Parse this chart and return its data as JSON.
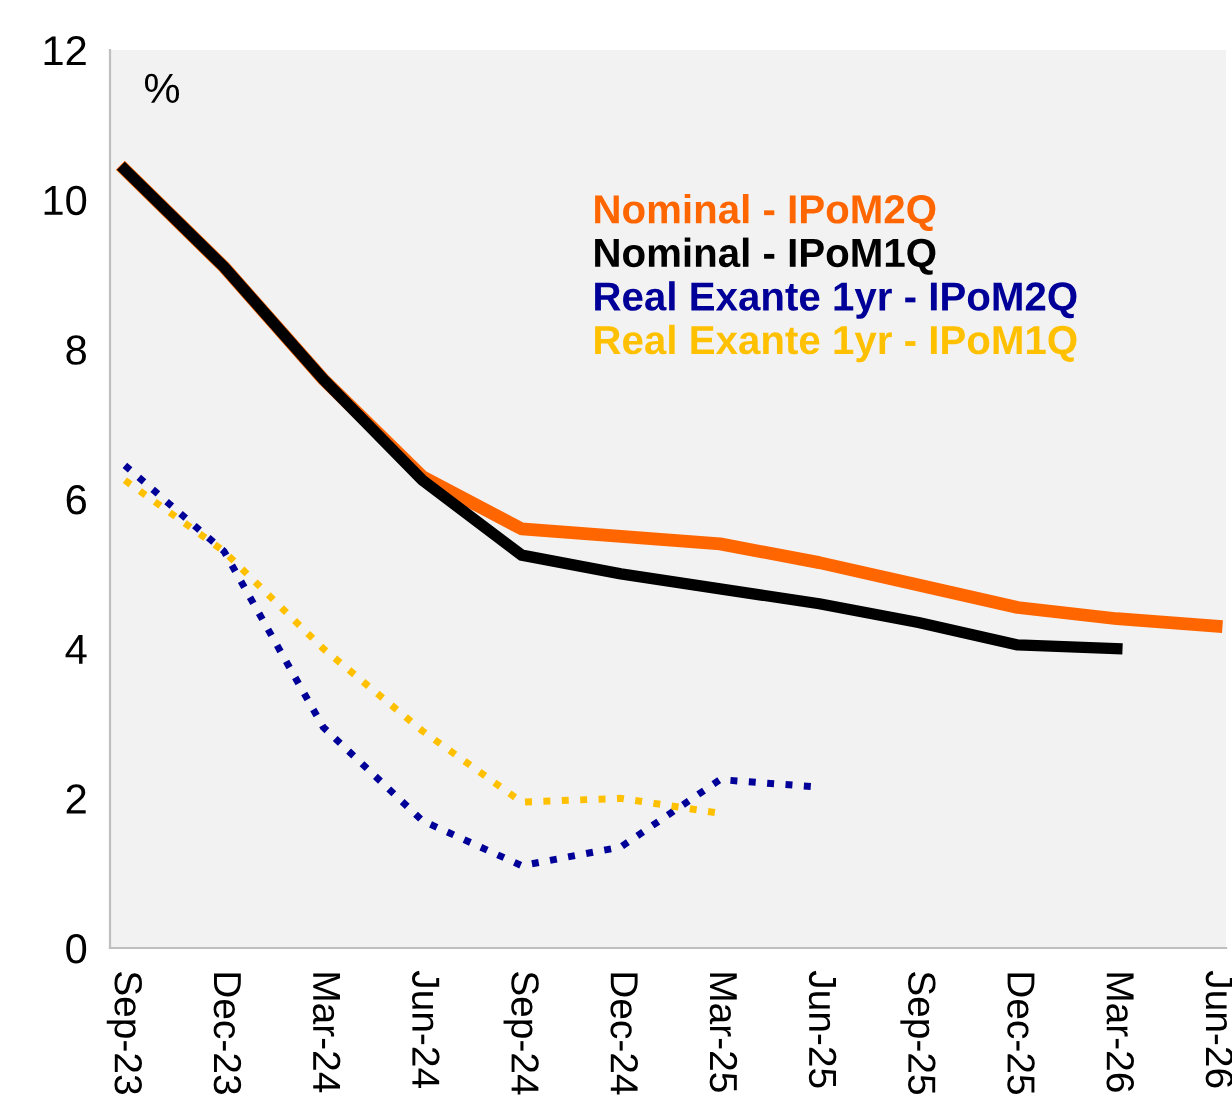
{
  "chart_data": {
    "type": "line",
    "categories": [
      "Sep-23",
      "Dec-23",
      "Mar-24",
      "Jun-24",
      "Sep-24",
      "Dec-24",
      "Mar-25",
      "Jun-25",
      "Sep-25",
      "Dec-25",
      "Mar-26",
      "Jun-26"
    ],
    "series": [
      {
        "name": "Nominal - IPoM2Q",
        "color": "#ff6600",
        "line_style": "solid",
        "values": [
          10.4,
          9.1,
          7.6,
          6.3,
          5.6,
          5.5,
          5.4,
          5.15,
          4.85,
          4.55,
          4.4,
          4.3
        ]
      },
      {
        "name": "Nominal - IPoM1Q",
        "color": "#000000",
        "line_style": "solid",
        "values": [
          10.4,
          9.1,
          7.6,
          6.25,
          5.25,
          5.0,
          4.8,
          4.6,
          4.35,
          4.05,
          4.0,
          null
        ]
      },
      {
        "name": "Real Exante 1yr - IPoM2Q",
        "color": "#000099",
        "line_style": "dotted",
        "values": [
          6.45,
          5.3,
          2.95,
          1.7,
          1.1,
          1.35,
          2.25,
          2.15,
          null,
          null,
          null,
          null
        ]
      },
      {
        "name": "Real Exante 1yr - IPoM1Q",
        "color": "#ffc000",
        "line_style": "dotted",
        "values": [
          6.25,
          5.3,
          4.0,
          2.9,
          1.95,
          2.0,
          1.8,
          null,
          null,
          null,
          null,
          null
        ]
      }
    ],
    "ylim": [
      0,
      12
    ],
    "yticks": [
      0,
      2,
      4,
      6,
      8,
      10,
      12
    ],
    "annotations": [
      "%"
    ],
    "legend": "top right",
    "grid": false,
    "marker": "none"
  }
}
